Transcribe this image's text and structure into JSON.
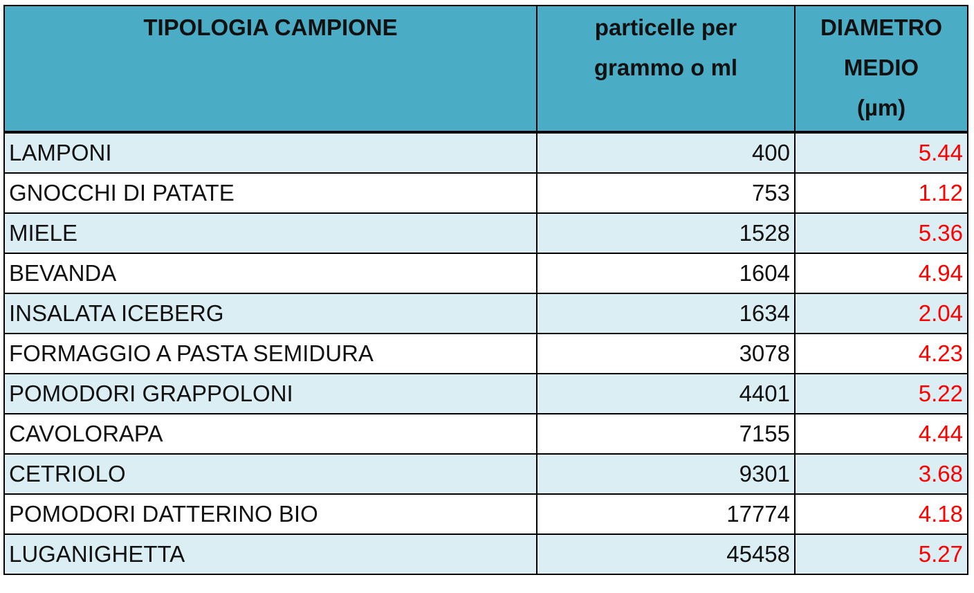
{
  "table": {
    "headers": [
      [
        "TIPOLOGIA CAMPIONE"
      ],
      [
        "particelle per",
        "grammo o ml"
      ],
      [
        "DIAMETRO",
        "MEDIO",
        "(µm)"
      ]
    ],
    "rows": [
      [
        "LAMPONI",
        400,
        5.44
      ],
      [
        "GNOCCHI DI PATATE",
        753,
        1.12
      ],
      [
        "MIELE",
        1528,
        5.36
      ],
      [
        "BEVANDA",
        1604,
        4.94
      ],
      [
        "INSALATA ICEBERG",
        1634,
        2.04
      ],
      [
        "FORMAGGIO A PASTA SEMIDURA",
        3078,
        4.23
      ],
      [
        "POMODORI GRAPPOLONI",
        4401,
        5.22
      ],
      [
        "CAVOLORAPA",
        7155,
        4.44
      ],
      [
        "CETRIOLO",
        9301,
        3.68
      ],
      [
        "POMODORI DATTERINO BIO",
        17774,
        4.18
      ],
      [
        "LUGANIGHETTA",
        45458,
        5.27
      ]
    ]
  }
}
